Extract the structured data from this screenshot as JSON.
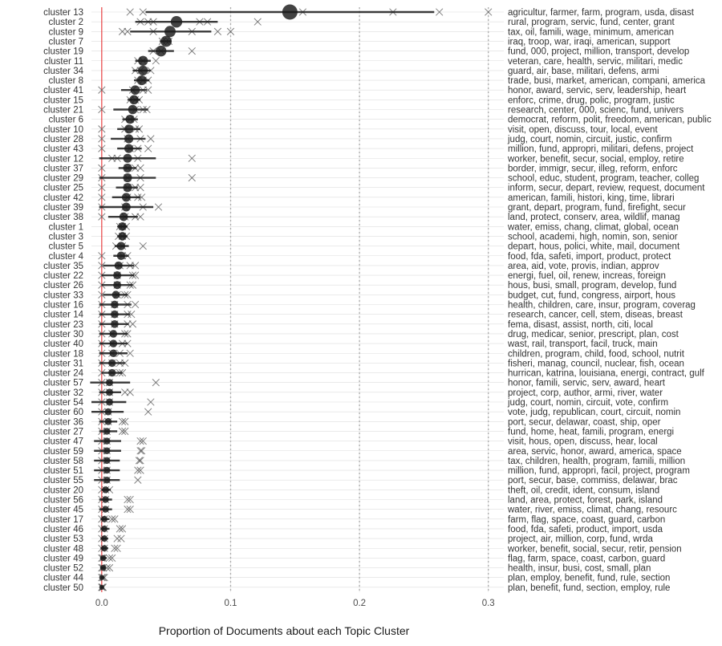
{
  "chart_data": {
    "type": "scatter",
    "xlabel": "Proportion of Documents about each Topic Cluster",
    "ylabel": "",
    "xlim": [
      -0.008,
      0.312
    ],
    "x_ticks": [
      0.0,
      0.1,
      0.2,
      0.3
    ],
    "x_tick_labels": [
      "0.0",
      "0.1",
      "0.2",
      "0.3"
    ],
    "dotted_vlines": [
      0.1,
      0.2,
      0.3
    ],
    "reference_line": {
      "x": 0.0,
      "color": "#e41a1c"
    },
    "grid": true,
    "legend": "none",
    "colors": {
      "point": "#1a1a1a",
      "interval": "#1a1a1a",
      "sample_marker": "#555555",
      "grid": "#dddddd",
      "dotted": "#aaaaaa"
    },
    "rows": [
      {
        "cluster": "cluster 13",
        "topic": "agricultur, farmer, farm, program, usda, disast",
        "estimate": 0.146,
        "lo": 0.034,
        "hi": 0.258,
        "samples": [
          0.022,
          0.032,
          0.156,
          0.226,
          0.262,
          0.3
        ]
      },
      {
        "cluster": "cluster 2",
        "topic": "rural, program, servic, fund, center, grant",
        "estimate": 0.058,
        "lo": 0.026,
        "hi": 0.09,
        "samples": [
          0.03,
          0.036,
          0.04,
          0.076,
          0.082,
          0.121
        ]
      },
      {
        "cluster": "cluster 9",
        "topic": "tax, oil, famili, wage, minimum, american",
        "estimate": 0.053,
        "lo": 0.022,
        "hi": 0.085,
        "samples": [
          0.016,
          0.02,
          0.04,
          0.07,
          0.09,
          0.1
        ]
      },
      {
        "cluster": "cluster 7",
        "topic": "iraq, troop, war, iraqi, american, support",
        "estimate": 0.05,
        "lo": 0.045,
        "hi": 0.054,
        "samples": [
          0.047,
          0.05,
          0.052
        ]
      },
      {
        "cluster": "cluster 19",
        "topic": "fund, 000, project, million, transport, develop",
        "estimate": 0.046,
        "lo": 0.036,
        "hi": 0.056,
        "samples": [
          0.04,
          0.046,
          0.07
        ]
      },
      {
        "cluster": "cluster 11",
        "topic": "veteran, care, health, servic, militari, medic",
        "estimate": 0.032,
        "lo": 0.026,
        "hi": 0.038,
        "samples": [
          0.028,
          0.032,
          0.042
        ]
      },
      {
        "cluster": "cluster 34",
        "topic": "guard, air, base, militari, defens, armi",
        "estimate": 0.032,
        "lo": 0.024,
        "hi": 0.038,
        "samples": [
          0.026,
          0.03,
          0.038
        ]
      },
      {
        "cluster": "cluster 8",
        "topic": "trade, busi, market, american, compani, america",
        "estimate": 0.031,
        "lo": 0.025,
        "hi": 0.037,
        "samples": [
          0.028,
          0.032,
          0.036
        ]
      },
      {
        "cluster": "cluster 41",
        "topic": "honor, award, servic, serv, leadership, heart",
        "estimate": 0.026,
        "lo": 0.015,
        "hi": 0.035,
        "samples": [
          0.0,
          0.024,
          0.032,
          0.036
        ]
      },
      {
        "cluster": "cluster 15",
        "topic": "enforc, crime, drug, polic, program, justic",
        "estimate": 0.025,
        "lo": 0.02,
        "hi": 0.03,
        "samples": [
          0.022,
          0.026,
          0.029
        ]
      },
      {
        "cluster": "cluster 21",
        "topic": "research, center, 000, scienc, fund, univers",
        "estimate": 0.024,
        "lo": 0.009,
        "hi": 0.036,
        "samples": [
          0.0,
          0.026,
          0.032,
          0.035
        ]
      },
      {
        "cluster": "cluster 6",
        "topic": "democrat, reform, polit, freedom, american, public",
        "estimate": 0.022,
        "lo": 0.016,
        "hi": 0.028,
        "samples": [
          0.018,
          0.022,
          0.025
        ]
      },
      {
        "cluster": "cluster 10",
        "topic": "visit, open, discuss, tour, local, event",
        "estimate": 0.021,
        "lo": 0.012,
        "hi": 0.03,
        "samples": [
          0.0,
          0.018,
          0.026,
          0.029
        ]
      },
      {
        "cluster": "cluster 28",
        "topic": "judg, court, nomin, circuit, justic, confirm",
        "estimate": 0.021,
        "lo": 0.007,
        "hi": 0.034,
        "samples": [
          0.0,
          0.02,
          0.03,
          0.038
        ]
      },
      {
        "cluster": "cluster 43",
        "topic": "million, fund, appropri, militari, defens, project",
        "estimate": 0.021,
        "lo": 0.012,
        "hi": 0.031,
        "samples": [
          0.0,
          0.022,
          0.028,
          0.036
        ]
      },
      {
        "cluster": "cluster 12",
        "topic": "worker, benefit, secur, social, employ, retire",
        "estimate": 0.02,
        "lo": -0.002,
        "hi": 0.042,
        "samples": [
          0.008,
          0.012,
          0.028,
          0.07
        ]
      },
      {
        "cluster": "cluster 37",
        "topic": "border, immigr, secur, illeg, reform, enforc",
        "estimate": 0.02,
        "lo": 0.013,
        "hi": 0.027,
        "samples": [
          0.0,
          0.02,
          0.026,
          0.03
        ]
      },
      {
        "cluster": "cluster 29",
        "topic": "school, educ, student, program, teacher, colleg",
        "estimate": 0.02,
        "lo": -0.002,
        "hi": 0.042,
        "samples": [
          0.0,
          0.02,
          0.03,
          0.07
        ]
      },
      {
        "cluster": "cluster 25",
        "topic": "inform, secur, depart, review, request, document",
        "estimate": 0.02,
        "lo": 0.011,
        "hi": 0.028,
        "samples": [
          0.0,
          0.02,
          0.026,
          0.03
        ]
      },
      {
        "cluster": "cluster 42",
        "topic": "american, famili, histori, king, time, librari",
        "estimate": 0.019,
        "lo": 0.008,
        "hi": 0.03,
        "samples": [
          0.0,
          0.02,
          0.028,
          0.031
        ]
      },
      {
        "cluster": "cluster 39",
        "topic": "grant, depart, program, fund, firefight, secur",
        "estimate": 0.019,
        "lo": -0.002,
        "hi": 0.04,
        "samples": [
          0.0,
          0.018,
          0.032,
          0.044
        ]
      },
      {
        "cluster": "cluster 38",
        "topic": "land, protect, conserv, area, wildlif, manag",
        "estimate": 0.017,
        "lo": 0.005,
        "hi": 0.028,
        "samples": [
          0.0,
          0.018,
          0.026,
          0.03
        ]
      },
      {
        "cluster": "cluster 1",
        "topic": "water, emiss, chang, climat, global, ocean",
        "estimate": 0.016,
        "lo": 0.012,
        "hi": 0.02,
        "samples": [
          0.014,
          0.016,
          0.019
        ]
      },
      {
        "cluster": "cluster 3",
        "topic": "school, academi, high, nomin, son, senior",
        "estimate": 0.016,
        "lo": 0.012,
        "hi": 0.02,
        "samples": [
          0.013,
          0.016,
          0.019
        ]
      },
      {
        "cluster": "cluster 5",
        "topic": "depart, hous, polici, white, mail, document",
        "estimate": 0.015,
        "lo": 0.01,
        "hi": 0.021,
        "samples": [
          0.011,
          0.016,
          0.032
        ]
      },
      {
        "cluster": "cluster 4",
        "topic": "food, fda, safeti, import, product, protect",
        "estimate": 0.015,
        "lo": 0.009,
        "hi": 0.021,
        "samples": [
          0.0,
          0.016,
          0.02
        ]
      },
      {
        "cluster": "cluster 35",
        "topic": "area, aid, vote, provis, indian, approv",
        "estimate": 0.013,
        "lo": 0.001,
        "hi": 0.025,
        "samples": [
          0.0,
          0.014,
          0.022,
          0.026
        ]
      },
      {
        "cluster": "cluster 22",
        "topic": "energi, fuel, oil, renew, increas, foreign",
        "estimate": 0.012,
        "lo": 0.0,
        "hi": 0.025,
        "samples": [
          0.0,
          0.012,
          0.024,
          0.026
        ]
      },
      {
        "cluster": "cluster 26",
        "topic": "hous, busi, small, program, develop, fund",
        "estimate": 0.012,
        "lo": 0.0,
        "hi": 0.024,
        "samples": [
          0.0,
          0.012,
          0.022,
          0.024
        ]
      },
      {
        "cluster": "cluster 33",
        "topic": "budget, cut, fund, congress, airport, hous",
        "estimate": 0.011,
        "lo": 0.001,
        "hi": 0.02,
        "samples": [
          0.0,
          0.012,
          0.018,
          0.02
        ]
      },
      {
        "cluster": "cluster 16",
        "topic": "health, children, care, insur, program, coverag",
        "estimate": 0.01,
        "lo": -0.002,
        "hi": 0.023,
        "samples": [
          0.0,
          0.01,
          0.02,
          0.026
        ]
      },
      {
        "cluster": "cluster 14",
        "topic": "research, cancer, cell, stem, diseas, breast",
        "estimate": 0.01,
        "lo": -0.002,
        "hi": 0.022,
        "samples": [
          0.0,
          0.01,
          0.02,
          0.023
        ]
      },
      {
        "cluster": "cluster 23",
        "topic": "fema, disast, assist, north, citi, local",
        "estimate": 0.01,
        "lo": -0.002,
        "hi": 0.021,
        "samples": [
          0.0,
          0.01,
          0.02,
          0.024
        ]
      },
      {
        "cluster": "cluster 30",
        "topic": "drug, medicar, senior, prescript, plan, cost",
        "estimate": 0.009,
        "lo": -0.002,
        "hi": 0.02,
        "samples": [
          0.0,
          0.008,
          0.018,
          0.02
        ]
      },
      {
        "cluster": "cluster 40",
        "topic": "wast, rail, transport, facil, truck, main",
        "estimate": 0.009,
        "lo": -0.002,
        "hi": 0.02,
        "samples": [
          0.0,
          0.008,
          0.016,
          0.02
        ]
      },
      {
        "cluster": "cluster 18",
        "topic": "children, program, child, food, school, nutrit",
        "estimate": 0.009,
        "lo": -0.002,
        "hi": 0.02,
        "samples": [
          0.0,
          0.008,
          0.014,
          0.022
        ]
      },
      {
        "cluster": "cluster 31",
        "topic": "fisheri, manag, council, nuclear, fish, ocean",
        "estimate": 0.008,
        "lo": -0.002,
        "hi": 0.018,
        "samples": [
          0.0,
          0.008,
          0.014,
          0.018
        ]
      },
      {
        "cluster": "cluster 24",
        "topic": "hurrican, katrina, louisiana, energi, contract, gulf",
        "estimate": 0.008,
        "lo": 0.0,
        "hi": 0.016,
        "samples": [
          0.0,
          0.008,
          0.014,
          0.016
        ]
      },
      {
        "cluster": "cluster 57",
        "topic": "honor, famili, servic, serv, award, heart",
        "estimate": 0.006,
        "lo": -0.009,
        "hi": 0.022,
        "samples": [
          0.0,
          0.006,
          0.042
        ]
      },
      {
        "cluster": "cluster 32",
        "topic": "project, corp, author, armi, river, water",
        "estimate": 0.006,
        "lo": -0.002,
        "hi": 0.015,
        "samples": [
          0.0,
          0.006,
          0.018,
          0.022
        ]
      },
      {
        "cluster": "cluster 54",
        "topic": "judg, court, nomin, circuit, vote, confirm",
        "estimate": 0.006,
        "lo": -0.008,
        "hi": 0.019,
        "samples": [
          0.0,
          0.006,
          0.038
        ]
      },
      {
        "cluster": "cluster 60",
        "topic": "vote, judg, republican, court, circuit, nomin",
        "estimate": 0.005,
        "lo": -0.008,
        "hi": 0.017,
        "samples": [
          0.0,
          0.005,
          0.036
        ]
      },
      {
        "cluster": "cluster 36",
        "topic": "port, secur, delawar, coast, ship, oper",
        "estimate": 0.005,
        "lo": -0.002,
        "hi": 0.012,
        "samples": [
          0.0,
          0.005,
          0.016,
          0.018
        ]
      },
      {
        "cluster": "cluster 27",
        "topic": "fund, home, heat, famili, program, energi",
        "estimate": 0.004,
        "lo": -0.002,
        "hi": 0.012,
        "samples": [
          0.0,
          0.004,
          0.016,
          0.018
        ]
      },
      {
        "cluster": "cluster 47",
        "topic": "visit, hous, open, discuss, hear, local",
        "estimate": 0.004,
        "lo": -0.006,
        "hi": 0.015,
        "samples": [
          0.0,
          0.004,
          0.03,
          0.032
        ]
      },
      {
        "cluster": "cluster 59",
        "topic": "area, servic, honor, award, america, space",
        "estimate": 0.004,
        "lo": -0.006,
        "hi": 0.015,
        "samples": [
          0.0,
          0.004,
          0.03,
          0.031
        ]
      },
      {
        "cluster": "cluster 58",
        "topic": "tax, children, health, program, famili, million",
        "estimate": 0.004,
        "lo": -0.006,
        "hi": 0.014,
        "samples": [
          0.0,
          0.004,
          0.029,
          0.03
        ]
      },
      {
        "cluster": "cluster 51",
        "topic": "million, fund, appropri, facil, project, program",
        "estimate": 0.004,
        "lo": -0.006,
        "hi": 0.014,
        "samples": [
          0.0,
          0.004,
          0.028,
          0.03
        ]
      },
      {
        "cluster": "cluster 55",
        "topic": "port, secur, base, commiss, delawar, brac",
        "estimate": 0.004,
        "lo": -0.006,
        "hi": 0.014,
        "samples": [
          0.0,
          0.004,
          0.028
        ]
      },
      {
        "cluster": "cluster 20",
        "topic": "theft, oil, credit, ident, consum, island",
        "estimate": 0.003,
        "lo": 0.0,
        "hi": 0.007,
        "samples": [
          0.0,
          0.003,
          0.006
        ]
      },
      {
        "cluster": "cluster 56",
        "topic": "land, area, protect, forest, park, island",
        "estimate": 0.003,
        "lo": -0.002,
        "hi": 0.008,
        "samples": [
          0.0,
          0.003,
          0.02,
          0.022
        ]
      },
      {
        "cluster": "cluster 45",
        "topic": "water, river, emiss, climat, chang, resourc",
        "estimate": 0.003,
        "lo": -0.002,
        "hi": 0.008,
        "samples": [
          0.0,
          0.003,
          0.02,
          0.022
        ]
      },
      {
        "cluster": "cluster 17",
        "topic": "farm, flag, space, coast, guard, carbon",
        "estimate": 0.002,
        "lo": -0.001,
        "hi": 0.006,
        "samples": [
          0.0,
          0.002,
          0.008,
          0.01
        ]
      },
      {
        "cluster": "cluster 46",
        "topic": "food, fda, safeti, product, import, usda",
        "estimate": 0.002,
        "lo": -0.001,
        "hi": 0.006,
        "samples": [
          0.0,
          0.002,
          0.014,
          0.016
        ]
      },
      {
        "cluster": "cluster 53",
        "topic": "project, air, million, corp, fund, wrda",
        "estimate": 0.002,
        "lo": -0.001,
        "hi": 0.005,
        "samples": [
          0.0,
          0.002,
          0.012,
          0.015
        ]
      },
      {
        "cluster": "cluster 48",
        "topic": "worker, benefit, social, secur, retir, pension",
        "estimate": 0.002,
        "lo": -0.001,
        "hi": 0.005,
        "samples": [
          0.0,
          0.002,
          0.01,
          0.012
        ]
      },
      {
        "cluster": "cluster 49",
        "topic": "flag, farm, space, coast, carbon, guard",
        "estimate": 0.001,
        "lo": -0.001,
        "hi": 0.004,
        "samples": [
          0.0,
          0.001,
          0.006,
          0.008
        ]
      },
      {
        "cluster": "cluster 52",
        "topic": "health, insur, busi, cost, small, plan",
        "estimate": 0.001,
        "lo": -0.001,
        "hi": 0.003,
        "samples": [
          0.0,
          0.001,
          0.004,
          0.006
        ]
      },
      {
        "cluster": "cluster 44",
        "topic": "plan, employ, benefit, fund, rule, section",
        "estimate": 0.0,
        "lo": -0.001,
        "hi": 0.002,
        "samples": [
          0.0,
          0.001,
          0.002
        ]
      },
      {
        "cluster": "cluster 50",
        "topic": "plan, benefit, fund, section, employ, rule",
        "estimate": 0.0,
        "lo": -0.001,
        "hi": 0.001,
        "samples": [
          0.0,
          0.0005,
          0.001
        ]
      }
    ]
  }
}
